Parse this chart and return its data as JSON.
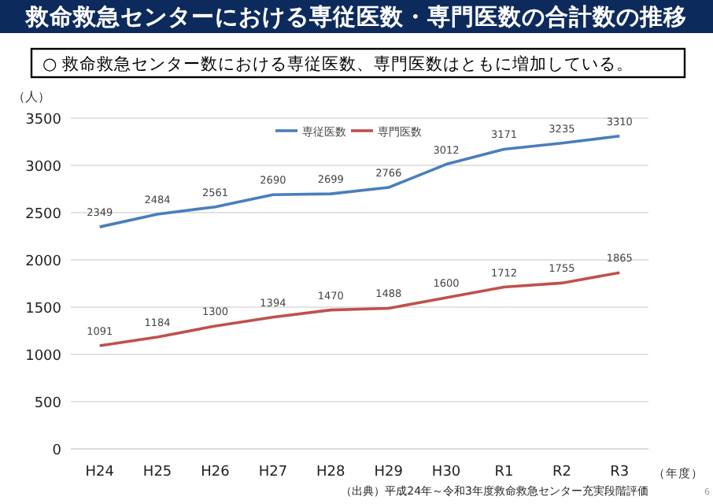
{
  "chart_data": {
    "type": "line",
    "title": "救命救急センターにおける専従医数・専門医数の合計数の推移",
    "subtitle": "○ 救命救急センター数における専従医数、専門医数はともに増加している。",
    "ylabel": "（人）",
    "xlabel": "（年度）",
    "categories": [
      "H24",
      "H25",
      "H26",
      "H27",
      "H28",
      "H29",
      "H30",
      "R1",
      "R2",
      "R3"
    ],
    "series": [
      {
        "name": "専従医数",
        "color": "#4a7ebb",
        "values": [
          2349,
          2484,
          2561,
          2690,
          2699,
          2766,
          3012,
          3171,
          3235,
          3310
        ]
      },
      {
        "name": "専門医数",
        "color": "#c0504d",
        "values": [
          1091,
          1184,
          1300,
          1394,
          1470,
          1488,
          1600,
          1712,
          1755,
          1865
        ]
      }
    ],
    "ylim": [
      0,
      3500
    ],
    "yticks": [
      0,
      500,
      1000,
      1500,
      2000,
      2500,
      3000,
      3500
    ],
    "grid": "y",
    "legend": "top",
    "data_labels": true,
    "marker": "none",
    "line_style": "solid",
    "annotations": [
      "（出典）平成24年～令和3年度救命救急センター充実段階評価",
      "6"
    ]
  }
}
